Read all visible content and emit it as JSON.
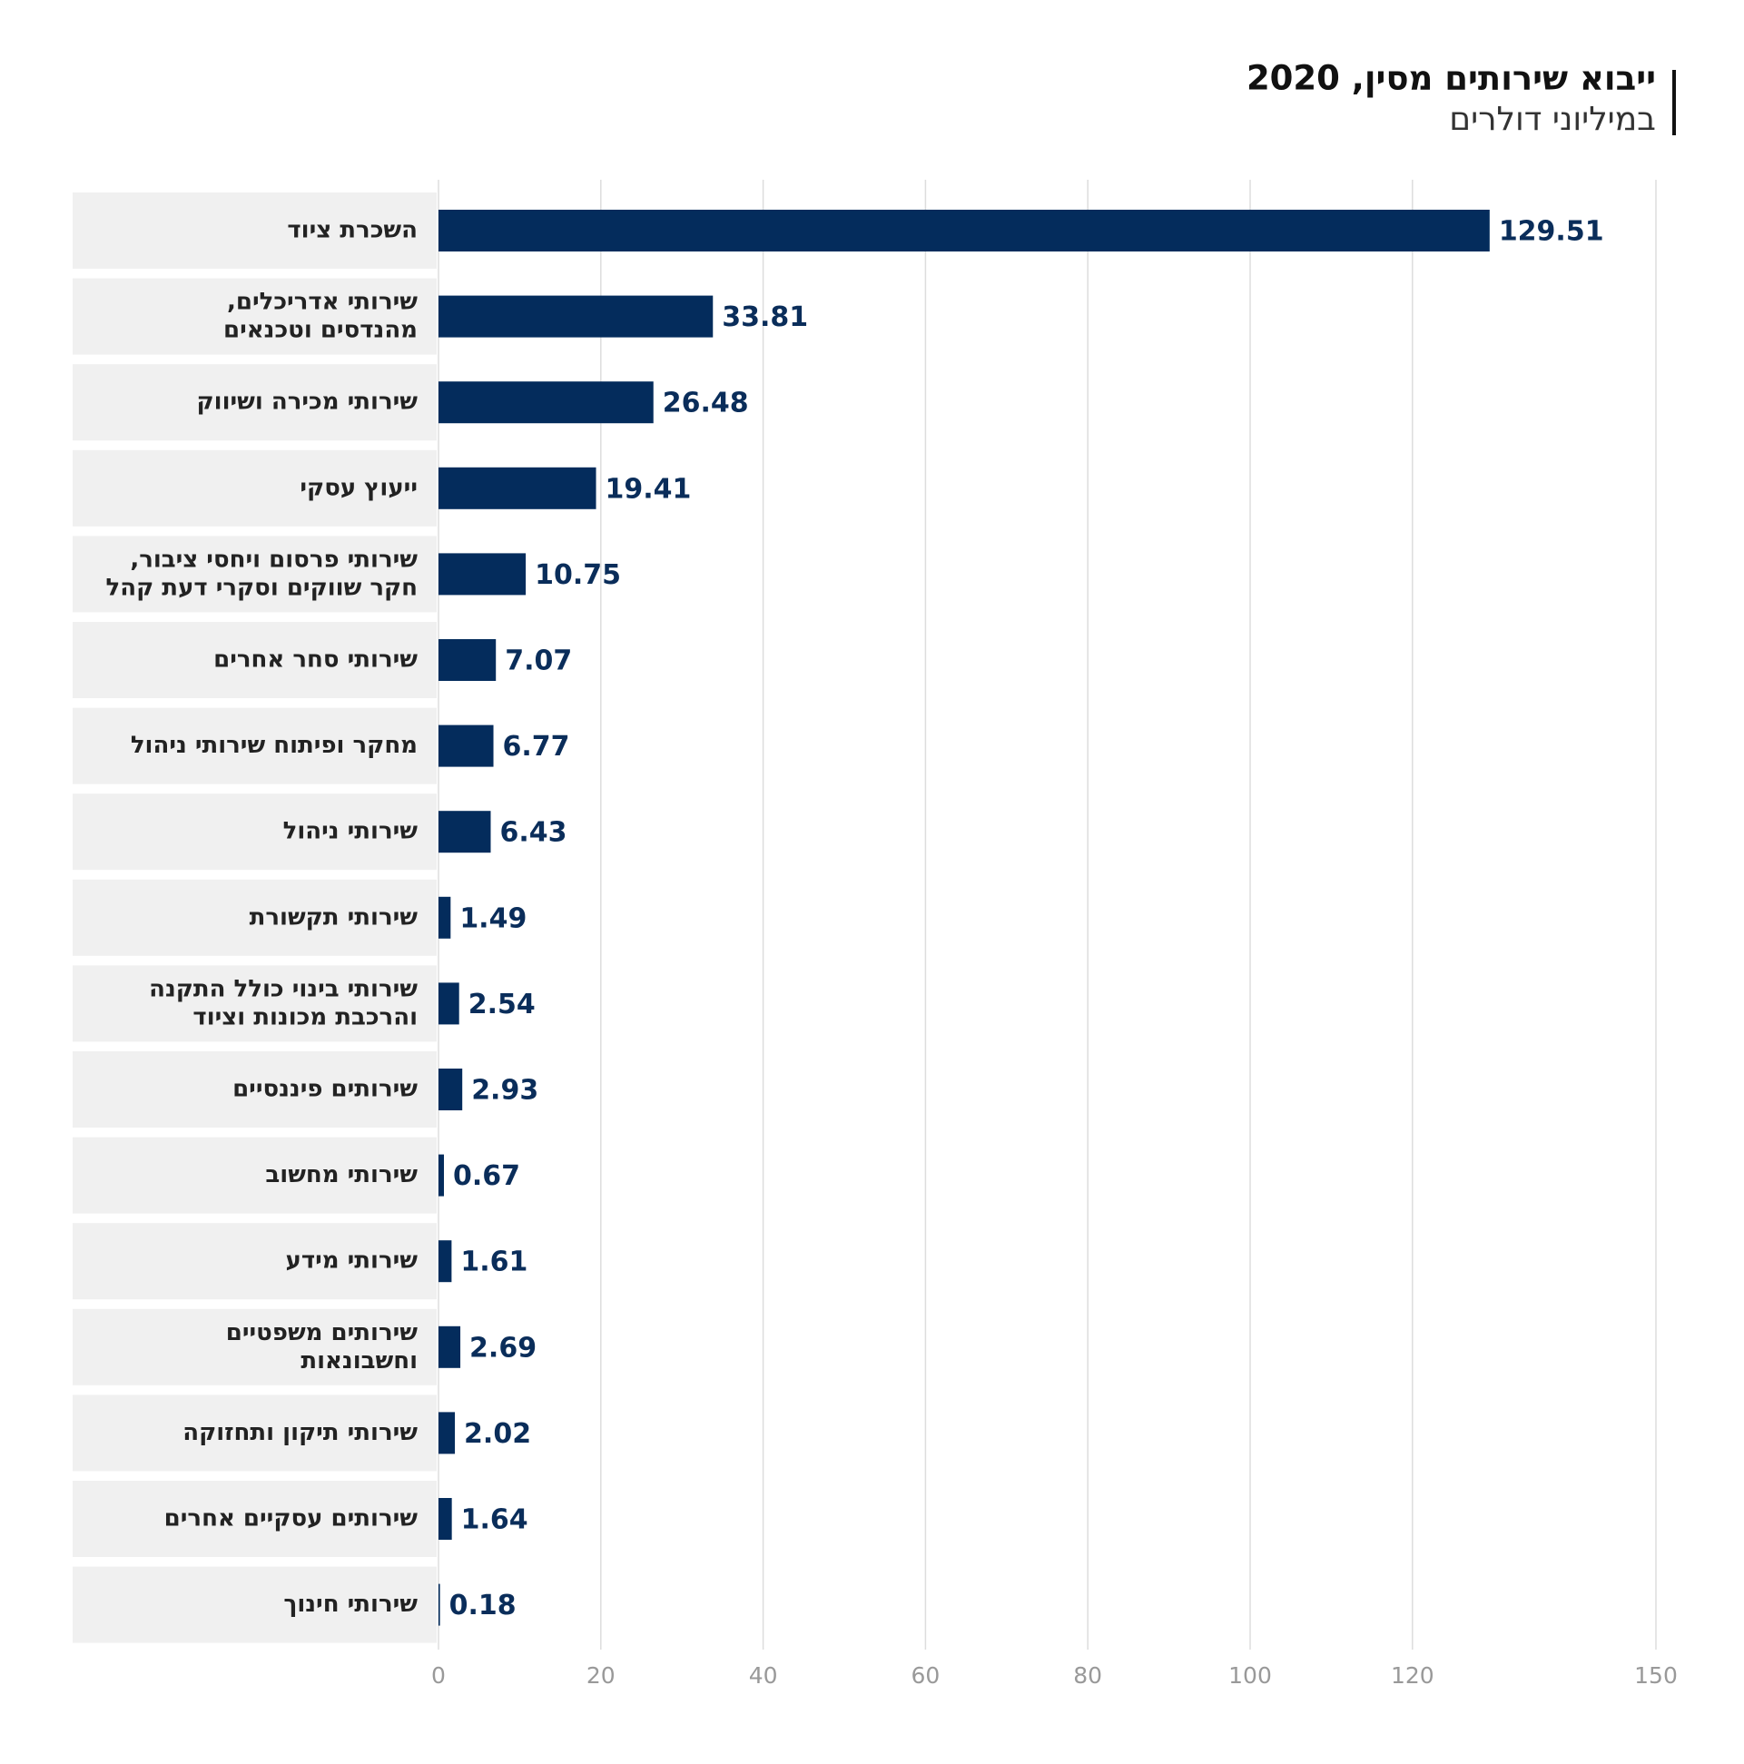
{
  "chart_data": {
    "type": "bar",
    "orientation": "horizontal",
    "title": "ייבוא שירותים מסין, 2020",
    "subtitle": "במיליוני דולרים",
    "categories": [
      [
        "השכרת ציוד"
      ],
      [
        "שירותי אדריכלים,",
        "מהנדסים וטכנאים"
      ],
      [
        "שירותי מכירה ושיווק"
      ],
      [
        "ייעוץ עסקי"
      ],
      [
        "שירותי פרסום ויחסי ציבור,",
        "חקר שווקים וסקרי דעת קהל"
      ],
      [
        "שירותי סחר אחרים"
      ],
      [
        "מחקר ופיתוח שירותי ניהול"
      ],
      [
        "שירותי ניהול"
      ],
      [
        "שירותי תקשורת"
      ],
      [
        "שירותי בינוי כולל התקנה",
        "והרכבת מכונות וציוד"
      ],
      [
        "שירותים פיננסיים"
      ],
      [
        "שירותי מחשוב"
      ],
      [
        "שירותי מידע"
      ],
      [
        "שירותים משפטיים",
        "וחשבונאות"
      ],
      [
        "שירותי תיקון ותחזוקה"
      ],
      [
        "שירותים עסקיים אחרים"
      ],
      [
        "שירותי חינוך"
      ]
    ],
    "values": [
      129.51,
      33.81,
      26.48,
      19.41,
      10.75,
      7.07,
      6.77,
      6.43,
      1.49,
      2.54,
      2.93,
      0.67,
      1.61,
      2.69,
      2.02,
      1.64,
      0.18
    ],
    "color": "#042c5c",
    "xlim": [
      0,
      150
    ],
    "xticks": [
      0,
      20,
      40,
      60,
      80,
      100,
      120,
      150
    ],
    "grid": true
  }
}
